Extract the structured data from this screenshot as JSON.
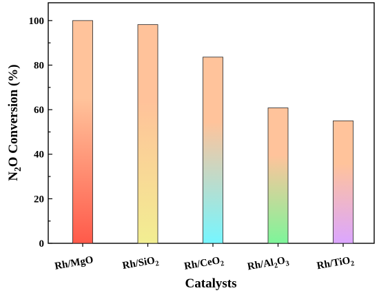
{
  "chart_data": {
    "type": "bar",
    "categories": [
      "Rh/MgO",
      "Rh/SiO2",
      "Rh/CeO2",
      "Rh/Al2O3",
      "Rh/TiO2"
    ],
    "category_labels": [
      [
        {
          "t": "Rh/MgO"
        }
      ],
      [
        {
          "t": "Rh/SiO"
        },
        {
          "t": "2",
          "sub": true
        }
      ],
      [
        {
          "t": "Rh/CeO"
        },
        {
          "t": "2",
          "sub": true
        }
      ],
      [
        {
          "t": "Rh/Al"
        },
        {
          "t": "2",
          "sub": true
        },
        {
          "t": "O"
        },
        {
          "t": "3",
          "sub": true
        }
      ],
      [
        {
          "t": "Rh/TiO"
        },
        {
          "t": "2",
          "sub": true
        }
      ]
    ],
    "values": [
      100,
      98.2,
      83.6,
      60.8,
      55.0
    ],
    "ylim": [
      0,
      108
    ],
    "yticks": [
      0,
      20,
      40,
      60,
      80,
      100
    ],
    "xlabel": "Catalysts",
    "ylabel_parts": [
      {
        "t": "N"
      },
      {
        "t": "2",
        "sub": true
      },
      {
        "t": "O Conversion (%)"
      }
    ],
    "bar_gradients": [
      {
        "top": "#ffc39b",
        "bottom": "#ff5a4a"
      },
      {
        "top": "#ffc29a",
        "bottom": "#f2ee92"
      },
      {
        "top": "#ffc39b",
        "bottom": "#76f6ff"
      },
      {
        "top": "#ffc39b",
        "bottom": "#7ef59a"
      },
      {
        "top": "#ffc39b",
        "bottom": "#dba6ff"
      }
    ],
    "grid": false,
    "legend": "none"
  }
}
